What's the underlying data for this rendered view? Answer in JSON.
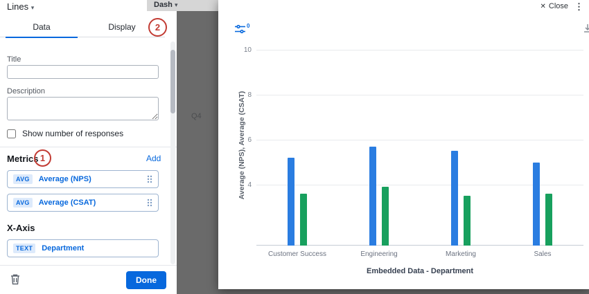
{
  "header": {
    "dashboard_name": "Dash"
  },
  "background": {
    "quarter_label": "Q4"
  },
  "panel": {
    "widget_type": "Lines",
    "tabs": {
      "data": "Data",
      "display": "Display"
    },
    "title_label": "Title",
    "title_value": "",
    "description_label": "Description",
    "description_value": "",
    "show_responses_label": "Show number of responses",
    "metrics_heading": "Metrics",
    "add_label": "Add",
    "metrics": [
      {
        "badge": "AVG",
        "label": "Average (NPS)"
      },
      {
        "badge": "AVG",
        "label": "Average (CSAT)"
      }
    ],
    "xaxis_heading": "X-Axis",
    "xaxis": [
      {
        "badge": "TEXT",
        "label": "Department"
      }
    ],
    "done_label": "Done"
  },
  "modal": {
    "close_label": "Close",
    "filter_count": "0"
  },
  "annotations": {
    "step1": "1",
    "step2": "2"
  },
  "colors": {
    "accent_blue": "#0768dd",
    "bar_blue": "#2a7de1",
    "bar_green": "#18a05e",
    "annotation_red": "#c23b33"
  },
  "chart_data": {
    "type": "bar",
    "categories": [
      "Customer Success",
      "Engineering",
      "Marketing",
      "Sales"
    ],
    "series": [
      {
        "name": "Average (NPS)",
        "color": "#2a7de1",
        "values": [
          5.2,
          5.7,
          5.5,
          5.0
        ]
      },
      {
        "name": "Average (CSAT)",
        "color": "#18a05e",
        "values": [
          3.6,
          3.9,
          3.5,
          3.6
        ]
      }
    ],
    "title": "",
    "xlabel": "Embedded Data - Department",
    "ylabel": "Average (NPS), Average (CSAT)",
    "yticks": [
      4,
      6,
      8,
      10
    ],
    "ylim": [
      1.3,
      10.3
    ],
    "grid": true,
    "legend": false
  }
}
